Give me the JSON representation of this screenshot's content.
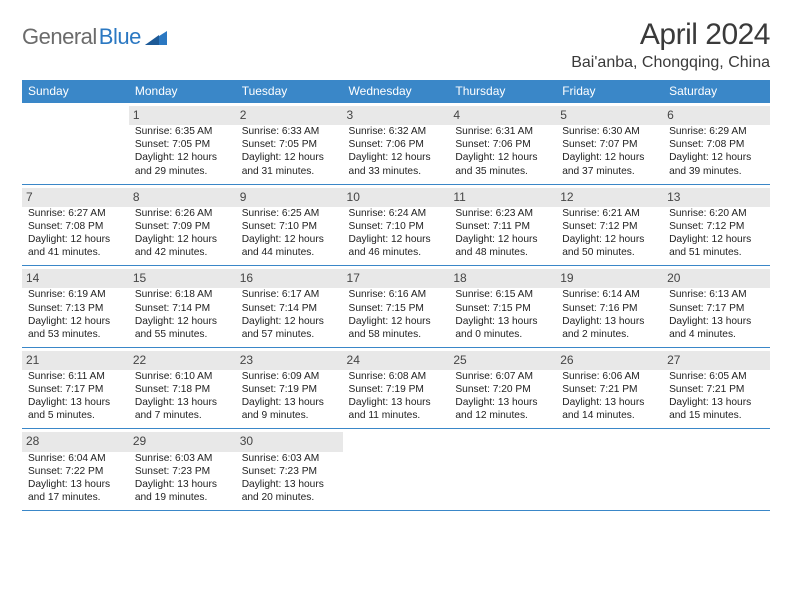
{
  "logo": {
    "word1": "General",
    "word2": "Blue"
  },
  "title": "April 2024",
  "subtitle": "Bai'anba, Chongqing, China",
  "colors": {
    "header_bg": "#3a87c8",
    "header_text": "#ffffff",
    "daynum_bg": "#e8e8e8",
    "daynum_text": "#454545",
    "row_border": "#3a87c8",
    "logo_gray": "#6b6b6b",
    "logo_blue": "#2b78c2"
  },
  "daysOfWeek": [
    "Sunday",
    "Monday",
    "Tuesday",
    "Wednesday",
    "Thursday",
    "Friday",
    "Saturday"
  ],
  "weeks": [
    [
      null,
      {
        "n": "1",
        "sr": "Sunrise: 6:35 AM",
        "ss": "Sunset: 7:05 PM",
        "d1": "Daylight: 12 hours",
        "d2": "and 29 minutes."
      },
      {
        "n": "2",
        "sr": "Sunrise: 6:33 AM",
        "ss": "Sunset: 7:05 PM",
        "d1": "Daylight: 12 hours",
        "d2": "and 31 minutes."
      },
      {
        "n": "3",
        "sr": "Sunrise: 6:32 AM",
        "ss": "Sunset: 7:06 PM",
        "d1": "Daylight: 12 hours",
        "d2": "and 33 minutes."
      },
      {
        "n": "4",
        "sr": "Sunrise: 6:31 AM",
        "ss": "Sunset: 7:06 PM",
        "d1": "Daylight: 12 hours",
        "d2": "and 35 minutes."
      },
      {
        "n": "5",
        "sr": "Sunrise: 6:30 AM",
        "ss": "Sunset: 7:07 PM",
        "d1": "Daylight: 12 hours",
        "d2": "and 37 minutes."
      },
      {
        "n": "6",
        "sr": "Sunrise: 6:29 AM",
        "ss": "Sunset: 7:08 PM",
        "d1": "Daylight: 12 hours",
        "d2": "and 39 minutes."
      }
    ],
    [
      {
        "n": "7",
        "sr": "Sunrise: 6:27 AM",
        "ss": "Sunset: 7:08 PM",
        "d1": "Daylight: 12 hours",
        "d2": "and 41 minutes."
      },
      {
        "n": "8",
        "sr": "Sunrise: 6:26 AM",
        "ss": "Sunset: 7:09 PM",
        "d1": "Daylight: 12 hours",
        "d2": "and 42 minutes."
      },
      {
        "n": "9",
        "sr": "Sunrise: 6:25 AM",
        "ss": "Sunset: 7:10 PM",
        "d1": "Daylight: 12 hours",
        "d2": "and 44 minutes."
      },
      {
        "n": "10",
        "sr": "Sunrise: 6:24 AM",
        "ss": "Sunset: 7:10 PM",
        "d1": "Daylight: 12 hours",
        "d2": "and 46 minutes."
      },
      {
        "n": "11",
        "sr": "Sunrise: 6:23 AM",
        "ss": "Sunset: 7:11 PM",
        "d1": "Daylight: 12 hours",
        "d2": "and 48 minutes."
      },
      {
        "n": "12",
        "sr": "Sunrise: 6:21 AM",
        "ss": "Sunset: 7:12 PM",
        "d1": "Daylight: 12 hours",
        "d2": "and 50 minutes."
      },
      {
        "n": "13",
        "sr": "Sunrise: 6:20 AM",
        "ss": "Sunset: 7:12 PM",
        "d1": "Daylight: 12 hours",
        "d2": "and 51 minutes."
      }
    ],
    [
      {
        "n": "14",
        "sr": "Sunrise: 6:19 AM",
        "ss": "Sunset: 7:13 PM",
        "d1": "Daylight: 12 hours",
        "d2": "and 53 minutes."
      },
      {
        "n": "15",
        "sr": "Sunrise: 6:18 AM",
        "ss": "Sunset: 7:14 PM",
        "d1": "Daylight: 12 hours",
        "d2": "and 55 minutes."
      },
      {
        "n": "16",
        "sr": "Sunrise: 6:17 AM",
        "ss": "Sunset: 7:14 PM",
        "d1": "Daylight: 12 hours",
        "d2": "and 57 minutes."
      },
      {
        "n": "17",
        "sr": "Sunrise: 6:16 AM",
        "ss": "Sunset: 7:15 PM",
        "d1": "Daylight: 12 hours",
        "d2": "and 58 minutes."
      },
      {
        "n": "18",
        "sr": "Sunrise: 6:15 AM",
        "ss": "Sunset: 7:15 PM",
        "d1": "Daylight: 13 hours",
        "d2": "and 0 minutes."
      },
      {
        "n": "19",
        "sr": "Sunrise: 6:14 AM",
        "ss": "Sunset: 7:16 PM",
        "d1": "Daylight: 13 hours",
        "d2": "and 2 minutes."
      },
      {
        "n": "20",
        "sr": "Sunrise: 6:13 AM",
        "ss": "Sunset: 7:17 PM",
        "d1": "Daylight: 13 hours",
        "d2": "and 4 minutes."
      }
    ],
    [
      {
        "n": "21",
        "sr": "Sunrise: 6:11 AM",
        "ss": "Sunset: 7:17 PM",
        "d1": "Daylight: 13 hours",
        "d2": "and 5 minutes."
      },
      {
        "n": "22",
        "sr": "Sunrise: 6:10 AM",
        "ss": "Sunset: 7:18 PM",
        "d1": "Daylight: 13 hours",
        "d2": "and 7 minutes."
      },
      {
        "n": "23",
        "sr": "Sunrise: 6:09 AM",
        "ss": "Sunset: 7:19 PM",
        "d1": "Daylight: 13 hours",
        "d2": "and 9 minutes."
      },
      {
        "n": "24",
        "sr": "Sunrise: 6:08 AM",
        "ss": "Sunset: 7:19 PM",
        "d1": "Daylight: 13 hours",
        "d2": "and 11 minutes."
      },
      {
        "n": "25",
        "sr": "Sunrise: 6:07 AM",
        "ss": "Sunset: 7:20 PM",
        "d1": "Daylight: 13 hours",
        "d2": "and 12 minutes."
      },
      {
        "n": "26",
        "sr": "Sunrise: 6:06 AM",
        "ss": "Sunset: 7:21 PM",
        "d1": "Daylight: 13 hours",
        "d2": "and 14 minutes."
      },
      {
        "n": "27",
        "sr": "Sunrise: 6:05 AM",
        "ss": "Sunset: 7:21 PM",
        "d1": "Daylight: 13 hours",
        "d2": "and 15 minutes."
      }
    ],
    [
      {
        "n": "28",
        "sr": "Sunrise: 6:04 AM",
        "ss": "Sunset: 7:22 PM",
        "d1": "Daylight: 13 hours",
        "d2": "and 17 minutes."
      },
      {
        "n": "29",
        "sr": "Sunrise: 6:03 AM",
        "ss": "Sunset: 7:23 PM",
        "d1": "Daylight: 13 hours",
        "d2": "and 19 minutes."
      },
      {
        "n": "30",
        "sr": "Sunrise: 6:03 AM",
        "ss": "Sunset: 7:23 PM",
        "d1": "Daylight: 13 hours",
        "d2": "and 20 minutes."
      },
      null,
      null,
      null,
      null
    ]
  ]
}
